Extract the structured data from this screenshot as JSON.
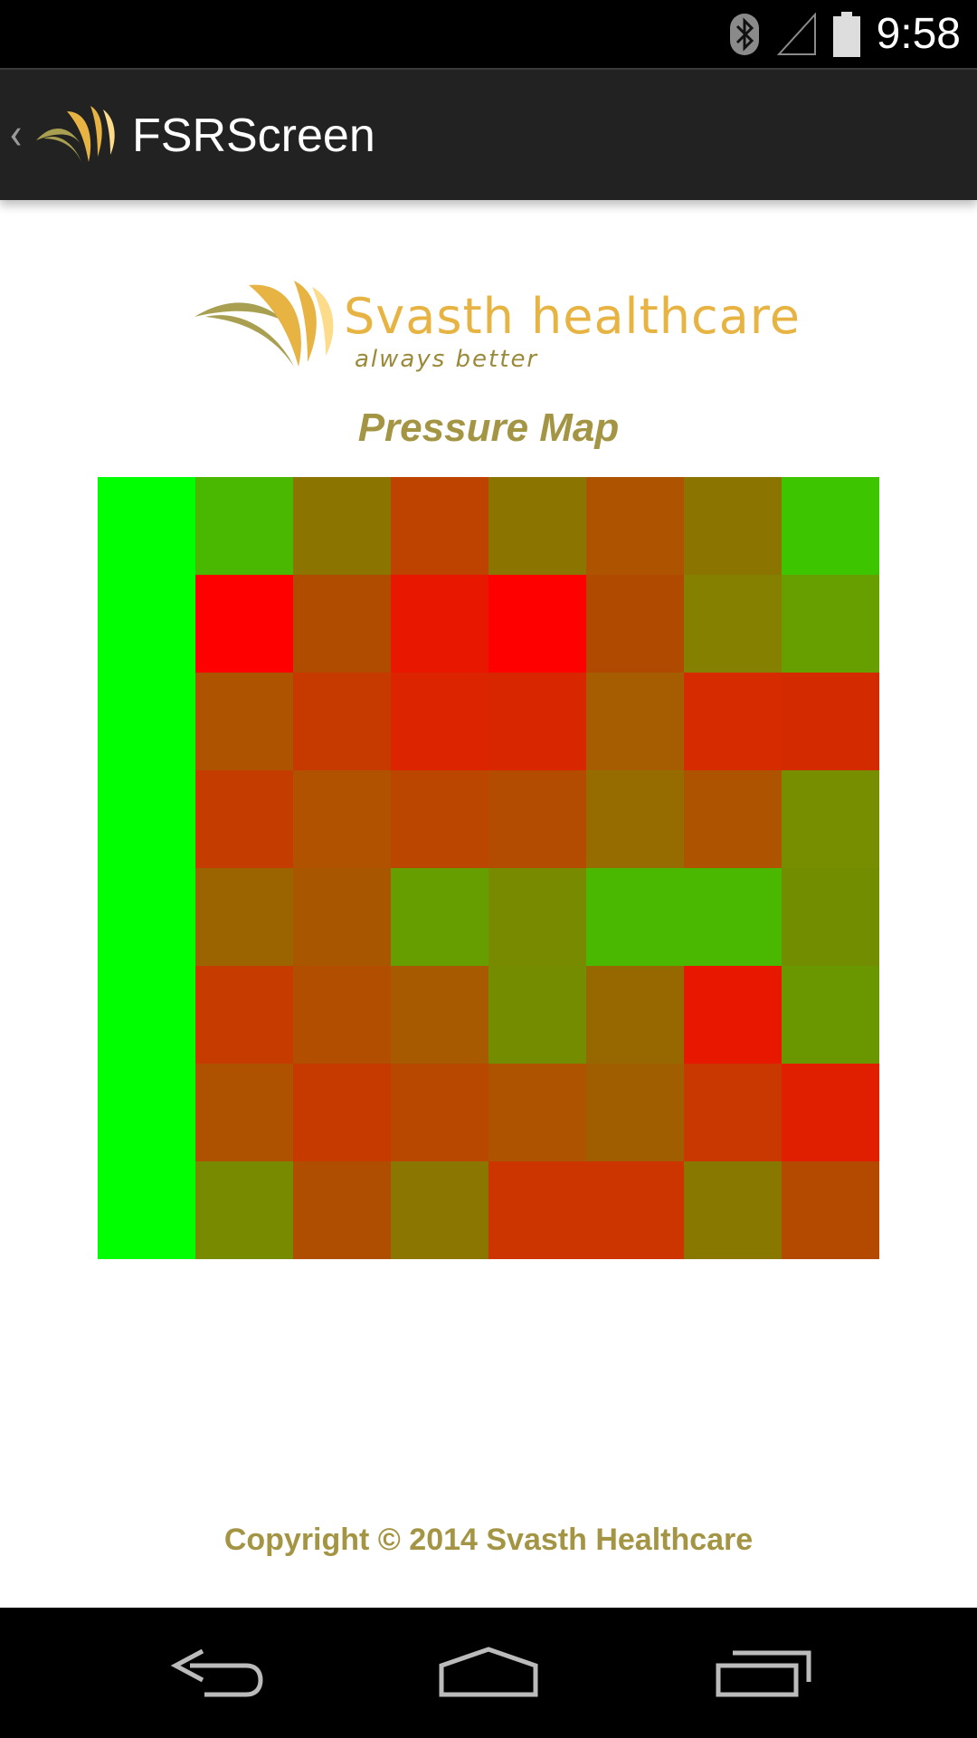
{
  "status_bar": {
    "time": "9:58",
    "icons": [
      "bluetooth-icon",
      "signal-icon",
      "battery-icon"
    ]
  },
  "action_bar": {
    "title": "FSRScreen",
    "icons": [
      "back-chevron-icon",
      "app-logo-icon"
    ]
  },
  "logo": {
    "brand": "Svasth healthcare",
    "tagline": "always better"
  },
  "map_title": "Pressure Map",
  "pressure_map": {
    "rows": 8,
    "cols": 8,
    "cells": [
      [
        "#00ff00",
        "#4ab800",
        "#8c7400",
        "#be4200",
        "#8c7400",
        "#ae5400",
        "#8c7400",
        "#3dc600"
      ],
      [
        "#00ff00",
        "#ff0000",
        "#b04c00",
        "#e81800",
        "#ff0000",
        "#b04a00",
        "#868000",
        "#679e00"
      ],
      [
        "#00ff00",
        "#ae5400",
        "#c63a00",
        "#dc2400",
        "#d82600",
        "#a65c00",
        "#d62a00",
        "#d42a00"
      ],
      [
        "#00ff00",
        "#c43c00",
        "#b05200",
        "#ba4600",
        "#b44c00",
        "#966c00",
        "#ae5400",
        "#768e00"
      ],
      [
        "#00ff00",
        "#9c6400",
        "#a85600",
        "#669e00",
        "#788a00",
        "#4ab800",
        "#4ab800",
        "#728e00"
      ],
      [
        "#00ff00",
        "#c63c00",
        "#b24e00",
        "#a85a00",
        "#748c00",
        "#986800",
        "#e81800",
        "#6a9600"
      ],
      [
        "#00ff00",
        "#ae5200",
        "#c63a00",
        "#b84800",
        "#ae5400",
        "#a05e00",
        "#c83800",
        "#e01e00"
      ],
      [
        "#00ff00",
        "#788a00",
        "#b04e00",
        "#8a7600",
        "#cc3400",
        "#cc3400",
        "#887800",
        "#b44a00"
      ]
    ]
  },
  "footer": {
    "copyright": "Copyright © 2014 Svasth Healthcare"
  },
  "nav_bar": {
    "buttons": [
      "back-icon",
      "home-icon",
      "recent-apps-icon"
    ]
  },
  "colors": {
    "accent_olive": "#a39544",
    "brand_gold": "#e7b443",
    "action_bar_bg": "#222222"
  }
}
